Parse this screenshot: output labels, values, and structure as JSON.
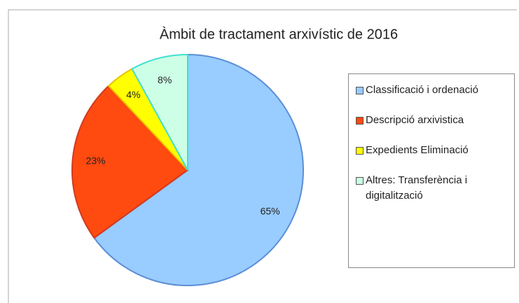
{
  "chart_data": {
    "type": "pie",
    "title": "Àmbit de tractament arxivístic de 2016",
    "categories": [
      "Classificació  i ordenació",
      "Descripció arxivistica",
      "Expedients Eliminació",
      "Altres: Transferència i digitalització"
    ],
    "values": [
      65,
      23,
      4,
      8
    ],
    "value_labels": [
      "65%",
      "23%",
      "4%",
      "8%"
    ],
    "colors": [
      "#99ccff",
      "#ff4a10",
      "#ffff00",
      "#ccffe6"
    ],
    "legend": "right"
  }
}
